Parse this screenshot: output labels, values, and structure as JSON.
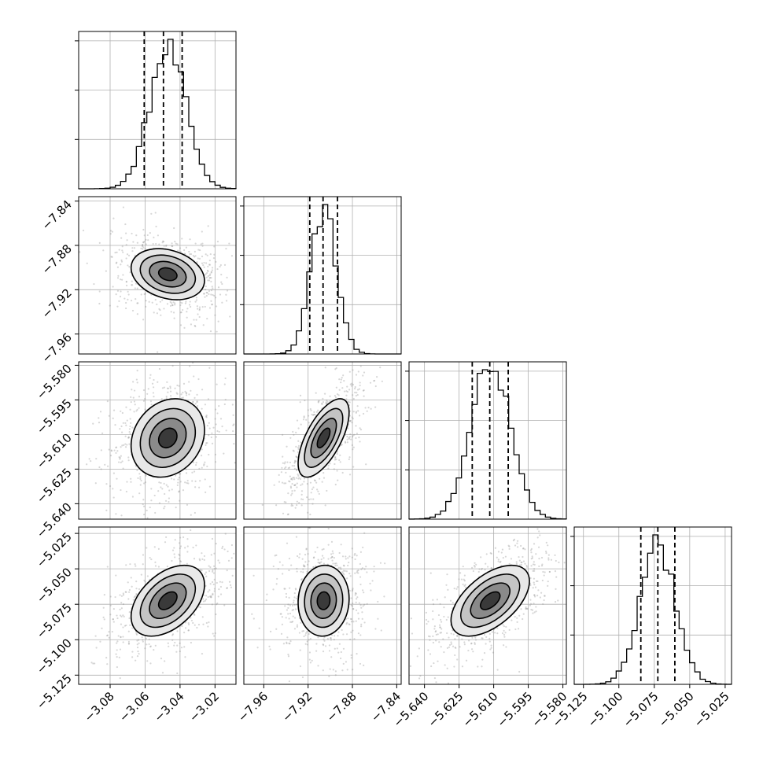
{
  "chart_data": {
    "type": "corner",
    "params": [
      {
        "mean": -3.047,
        "sd": 0.0105,
        "range": [
          -3.098,
          -3.008
        ],
        "ticks": [
          "-3.08",
          "-3.06",
          "-3.04",
          "-3.02"
        ],
        "tick_values": [
          -3.08,
          -3.06,
          -3.04,
          -3.02
        ],
        "quantiles": [
          -3.0605,
          -3.0495,
          -3.0388
        ]
      },
      {
        "mean": -7.906,
        "sd": 0.0115,
        "range": [
          -7.978,
          -7.836
        ],
        "ticks": [
          "-7.96",
          "-7.92",
          "-7.88",
          "-7.84"
        ],
        "tick_values": [
          -7.96,
          -7.92,
          -7.88,
          -7.84
        ],
        "quantiles": [
          -7.9185,
          -7.9065,
          -7.8935
        ]
      },
      {
        "mean": -5.6115,
        "sd": 0.0085,
        "range": [
          -5.6467,
          -5.5785
        ],
        "ticks": [
          "-5.640",
          "-5.625",
          "-5.610",
          "-5.595",
          "-5.580"
        ],
        "tick_values": [
          -5.64,
          -5.625,
          -5.61,
          -5.595,
          -5.58
        ],
        "quantiles": [
          -5.6193,
          -5.6117,
          -5.6037
        ]
      },
      {
        "mean": -5.0725,
        "sd": 0.0125,
        "range": [
          -5.1315,
          -5.0205
        ],
        "ticks": [
          "-5.125",
          "-5.100",
          "-5.075",
          "-5.050",
          "-5.025"
        ],
        "tick_values": [
          -5.125,
          -5.1,
          -5.075,
          -5.05,
          -5.025
        ],
        "quantiles": [
          -5.0845,
          -5.0725,
          -5.0605
        ]
      }
    ],
    "correlations": [
      [
        1.0,
        -0.25,
        0.2,
        0.45
      ],
      [
        -0.25,
        1.0,
        0.65,
        0.05
      ],
      [
        0.2,
        0.65,
        1.0,
        0.55
      ],
      [
        0.45,
        0.05,
        0.55,
        1.0
      ]
    ],
    "histogram_peak": [
      1.0,
      1.0,
      1.0,
      1.0
    ],
    "contour_levels_sigma": [
      0.5,
      1.0,
      1.5,
      2.0
    ],
    "grid": true
  }
}
